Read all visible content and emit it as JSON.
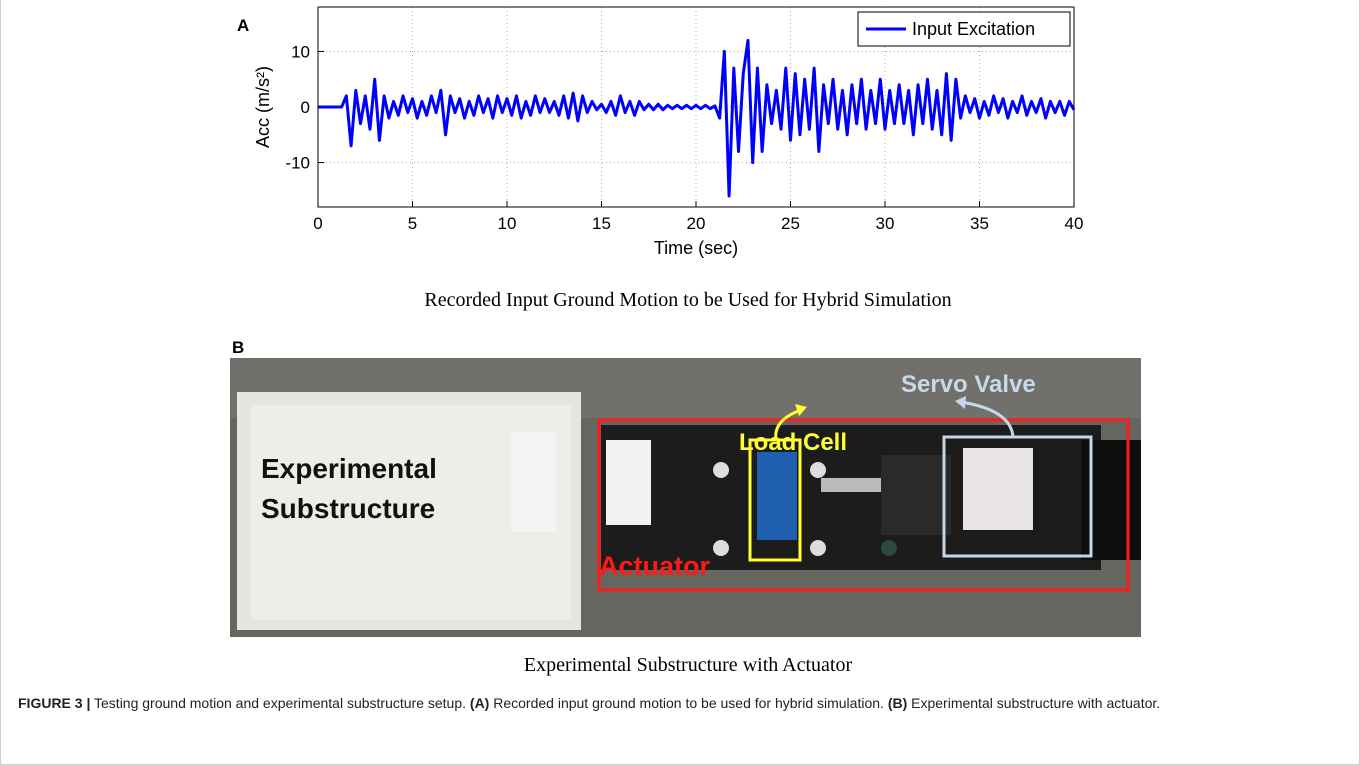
{
  "panel_a_label": "A",
  "chart_data": {
    "type": "line",
    "ylabel": "Acc (m/s²)",
    "xlabel": "Time (sec)",
    "x": [
      0,
      0.25,
      0.5,
      0.75,
      1,
      1.25,
      1.5,
      1.75,
      2,
      2.25,
      2.5,
      2.75,
      3,
      3.25,
      3.5,
      3.75,
      4,
      4.25,
      4.5,
      4.75,
      5,
      5.25,
      5.5,
      5.75,
      6,
      6.25,
      6.5,
      6.75,
      7,
      7.25,
      7.5,
      7.75,
      8,
      8.25,
      8.5,
      8.75,
      9,
      9.25,
      9.5,
      9.75,
      10,
      10.25,
      10.5,
      10.75,
      11,
      11.25,
      11.5,
      11.75,
      12,
      12.25,
      12.5,
      12.75,
      13,
      13.25,
      13.5,
      13.75,
      14,
      14.25,
      14.5,
      14.75,
      15,
      15.25,
      15.5,
      15.75,
      16,
      16.25,
      16.5,
      16.75,
      17,
      17.25,
      17.5,
      17.75,
      18,
      18.25,
      18.5,
      18.75,
      19,
      19.25,
      19.5,
      19.75,
      20,
      20.25,
      20.5,
      20.75,
      21,
      21.25,
      21.5,
      21.75,
      22,
      22.25,
      22.5,
      22.75,
      23,
      23.25,
      23.5,
      23.75,
      24,
      24.25,
      24.5,
      24.75,
      25,
      25.25,
      25.5,
      25.75,
      26,
      26.25,
      26.5,
      26.75,
      27,
      27.25,
      27.5,
      27.75,
      28,
      28.25,
      28.5,
      28.75,
      29,
      29.25,
      29.5,
      29.75,
      30,
      30.25,
      30.5,
      30.75,
      31,
      31.25,
      31.5,
      31.75,
      32,
      32.25,
      32.5,
      32.75,
      33,
      33.25,
      33.5,
      33.75,
      34,
      34.25,
      34.5,
      34.75,
      35,
      35.25,
      35.5,
      35.75,
      36,
      36.25,
      36.5,
      36.75,
      37,
      37.25,
      37.5,
      37.75,
      38,
      38.25,
      38.5,
      38.75,
      39,
      39.25,
      39.5,
      39.75,
      40
    ],
    "series": [
      {
        "name": "Input Excitation",
        "color": "#0000ff",
        "values": [
          0,
          0,
          0,
          0,
          0,
          0,
          2,
          -7,
          3,
          -3,
          2,
          -4,
          5,
          -6,
          2,
          -2,
          1,
          -1.5,
          2,
          -1,
          1.5,
          -2,
          1,
          -1.5,
          2,
          -1,
          3,
          -5,
          2,
          -1,
          1.5,
          -2,
          1,
          -1.5,
          2,
          -1,
          1.5,
          -2,
          2,
          -1,
          1.5,
          -1.5,
          2,
          -2,
          1,
          -1.5,
          2,
          -1,
          1.5,
          -1,
          1,
          -1.5,
          2,
          -2,
          2.5,
          -2.5,
          2,
          -1,
          1,
          -0.5,
          0.5,
          -1,
          1,
          -1.5,
          2,
          -1,
          1,
          -1.5,
          1,
          -0.5,
          0.5,
          -0.5,
          0.5,
          -0.5,
          0.3,
          -0.3,
          0.3,
          -0.3,
          0.3,
          -0.3,
          0.3,
          -0.3,
          0.3,
          -0.3,
          0.2,
          -2,
          10,
          -16,
          7,
          -8,
          6,
          12,
          -10,
          7,
          -8,
          4,
          -3,
          3,
          -4,
          7,
          -6,
          6,
          -5,
          5,
          -4,
          7,
          -8,
          4,
          -3,
          5,
          -4,
          3,
          -5,
          4,
          -3,
          5,
          -4,
          3,
          -3,
          5,
          -4,
          3,
          -3,
          4,
          -3,
          3,
          -5,
          4,
          -3,
          5,
          -4,
          3,
          -5,
          6,
          -6,
          5,
          -2,
          2,
          -1,
          1.5,
          -2,
          1,
          -1.5,
          2,
          -1,
          1.5,
          -2,
          1,
          -1,
          2,
          -1.5,
          1,
          -1,
          1.5,
          -2,
          1,
          -1,
          1,
          -1.5,
          1,
          -0.5
        ]
      }
    ],
    "xlim": [
      0,
      40
    ],
    "xticks": [
      0,
      5,
      10,
      15,
      20,
      25,
      30,
      35,
      40
    ],
    "ylim": [
      -18,
      18
    ],
    "yticks": [
      -10,
      0,
      10
    ],
    "grid": true,
    "legend": "upper right"
  },
  "panel_a_caption": "Recorded Input Ground Motion to be Used for Hybrid Simulation",
  "panel_b_label": "B",
  "photo": {
    "substructure_line1": "Experimental",
    "substructure_line2": "Substructure",
    "load_cell": "Load Cell",
    "servo_valve": "Servo Valve",
    "actuator": "Actuator"
  },
  "panel_b_caption": "Experimental Substructure with Actuator",
  "caption": {
    "label": "FIGURE 3 |",
    "text": "Testing ground motion and experimental substructure setup.",
    "a_label": "(A)",
    "a_text": "Recorded input ground motion to be used for hybrid simulation.",
    "b_label": "(B)",
    "b_text": "Experimental substructure with actuator."
  }
}
